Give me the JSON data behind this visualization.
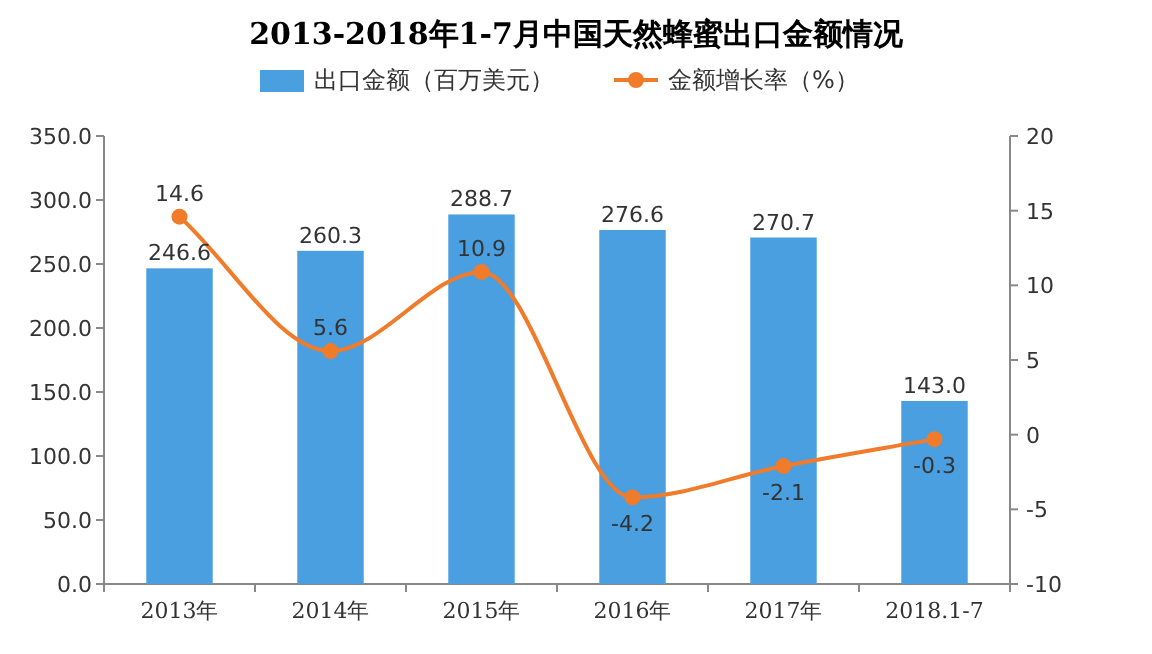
{
  "chart_data": {
    "type": "bar",
    "title": "2013-2018年1-7月中国天然蜂蜜出口金额情况",
    "categories": [
      "2013年",
      "2014年",
      "2015年",
      "2016年",
      "2017年",
      "2018.1-7"
    ],
    "series": [
      {
        "name": "出口金额（百万美元）",
        "color": "#4a9fe0",
        "values": [
          246.6,
          260.3,
          288.7,
          276.6,
          270.7,
          143.0
        ],
        "value_labels": [
          "246.6",
          "260.3",
          "288.7",
          "276.6",
          "270.7",
          "143.0"
        ]
      },
      {
        "name": "金额增长率（%）",
        "type": "line",
        "axis": "y2",
        "color": "#f07b2a",
        "marker": "circle",
        "values": [
          14.6,
          5.6,
          10.9,
          -4.2,
          -2.1,
          -0.3
        ],
        "value_labels": [
          "14.6",
          "5.6",
          "10.9",
          "-4.2",
          "-2.1",
          "-0.3"
        ]
      }
    ],
    "ylim": [
      0,
      350
    ],
    "yticks": [
      {
        "value": 0,
        "label": "0.0"
      },
      {
        "value": 50,
        "label": "50.0"
      },
      {
        "value": 100,
        "label": "100.0"
      },
      {
        "value": 150,
        "label": "150.0"
      },
      {
        "value": 200,
        "label": "200.0"
      },
      {
        "value": 250,
        "label": "250.0"
      },
      {
        "value": 300,
        "label": "300.0"
      },
      {
        "value": 350,
        "label": "350.0"
      }
    ],
    "y2lim": [
      -10,
      20
    ],
    "y2ticks": [
      -10,
      -5,
      0,
      5,
      10,
      15,
      20
    ],
    "legend": "top"
  }
}
